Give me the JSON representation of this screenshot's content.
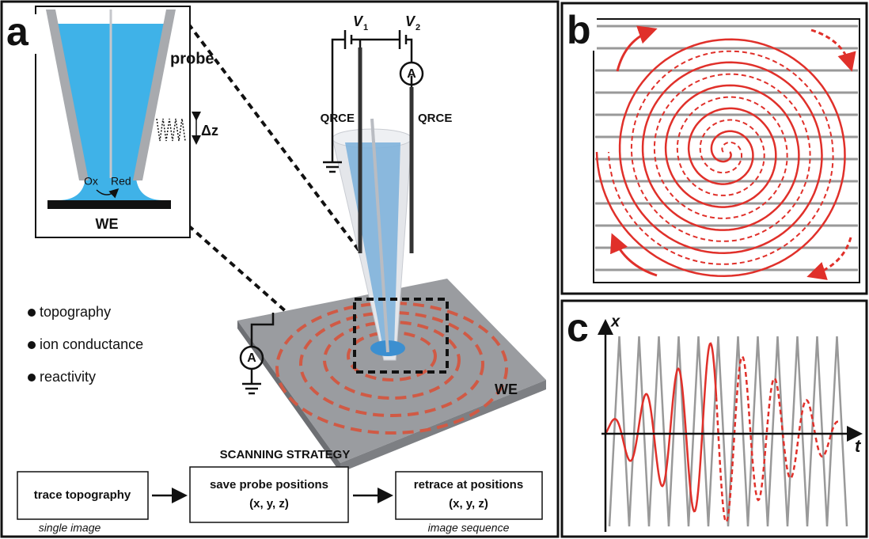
{
  "panels": {
    "a": {
      "label": "a",
      "inset": {
        "probe": "probe",
        "delta_z": "Δz",
        "ox": "Ox",
        "red": "Red",
        "electrode": "WE"
      },
      "circuit": {
        "v1": {
          "symbol": "V",
          "subscript": "1"
        },
        "v2": {
          "symbol": "V",
          "subscript": "2"
        },
        "ammeter_top": "A",
        "qrce_left": "QRCE",
        "qrce_right": "QRCE",
        "ammeter_left": "A",
        "electrode": "WE"
      },
      "modes": [
        "topography",
        "ion conductance",
        "reactivity"
      ],
      "strategy": {
        "title": "SCANNING STRATEGY",
        "steps": [
          {
            "label": "trace topography",
            "caption": "single image"
          },
          {
            "label": "save probe positions",
            "coords": "(x, y, z)"
          },
          {
            "label": "retrace at positions",
            "coords": "(x, y, z)",
            "caption": "image sequence"
          }
        ]
      }
    },
    "b": {
      "label": "b"
    },
    "c": {
      "label": "c",
      "y_axis": "x",
      "x_axis": "t"
    }
  }
}
